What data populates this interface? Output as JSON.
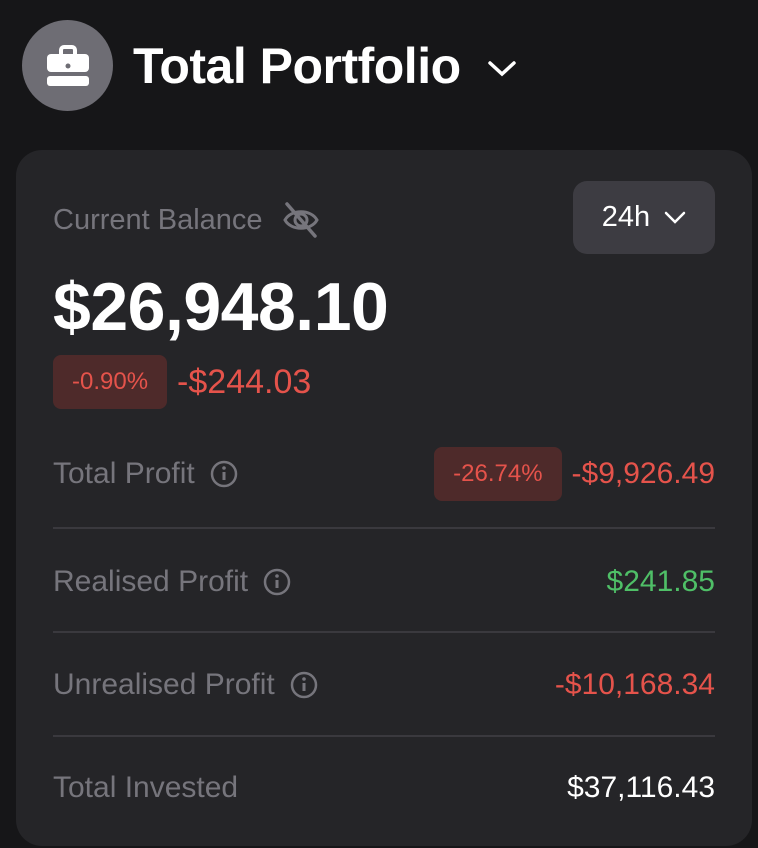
{
  "header": {
    "title": "Total Portfolio",
    "icon": "briefcase-icon"
  },
  "card": {
    "balance_label": "Current Balance",
    "range": "24h",
    "balance": "$26,948.10",
    "change_percent": "-0.90%",
    "change_amount": "-$244.03",
    "rows": [
      {
        "label": "Total Profit",
        "percent": "-26.74%",
        "value": "-$9,926.49",
        "tone": "negative"
      },
      {
        "label": "Realised Profit",
        "value": "$241.85",
        "tone": "positive"
      },
      {
        "label": "Unrealised Profit",
        "value": "-$10,168.34",
        "tone": "negative"
      },
      {
        "label": "Total Invested",
        "value": "$37,116.43",
        "tone": "neutral"
      }
    ]
  },
  "colors": {
    "negative": "#e5534b",
    "positive": "#4fbf67",
    "card": "#252528",
    "background": "#161618"
  }
}
